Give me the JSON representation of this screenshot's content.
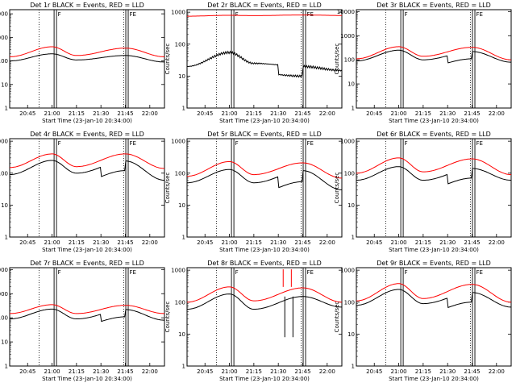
{
  "chart_data": {
    "type": "line",
    "x_range": [
      "20:34:00",
      "22:09:00"
    ],
    "x_ticks": [
      "20:45",
      "21:00",
      "21:15",
      "21:30",
      "21:45",
      "22:00"
    ],
    "y_scale": "log",
    "y_ticks": [
      "1",
      "10",
      "100",
      "1000",
      "10000"
    ],
    "ylabel": "Counts/sec",
    "xlabel": "Start Time (23-Jan-10 20:34:00)",
    "series_colors": {
      "Events": "#000000",
      "LLD": "#ff0000"
    },
    "markers": {
      "dotted_times": [
        "20:52",
        "21:44"
      ],
      "double_line_times": [
        "21:02",
        "21:46"
      ],
      "letters": [
        "F",
        "FE"
      ]
    },
    "panels": [
      {
        "title": "Det 1r  BLACK = Events, RED = LLD",
        "ylim": [
          1,
          15000
        ],
        "y_ticks_shown": [
          "1",
          "10",
          "100",
          "1000",
          "10000"
        ],
        "events_base": [
          100,
          200,
          110,
          170,
          90
        ],
        "lld_base": [
          150,
          400,
          170,
          350,
          150
        ],
        "steps": []
      },
      {
        "title": "Det 2r  BLACK = Events, RED = LLD",
        "ylim": [
          1,
          1200
        ],
        "y_ticks_shown": [
          "1",
          "10",
          "100",
          "1000"
        ],
        "events_base": [
          20,
          55,
          25,
          20,
          15
        ],
        "lld_base": [
          750,
          800,
          780,
          820,
          790
        ],
        "steps": [
          {
            "t": "21:30",
            "factor": 0.5
          }
        ]
      },
      {
        "title": "Det 3r  BLACK = Events, RED = LLD",
        "ylim": [
          1,
          12000
        ],
        "y_ticks_shown": [
          "1",
          "10",
          "100",
          "1000",
          "10000"
        ],
        "events_base": [
          90,
          250,
          100,
          220,
          80
        ],
        "lld_base": [
          110,
          350,
          140,
          330,
          100
        ],
        "steps": [
          {
            "t": "21:30",
            "factor": 0.5
          }
        ]
      },
      {
        "title": "Det 4r  BLACK = Events, RED = LLD",
        "ylim": [
          1,
          1200
        ],
        "y_ticks_shown": [
          "1",
          "10",
          "100",
          "1000"
        ],
        "events_base": [
          90,
          250,
          100,
          240,
          60
        ],
        "lld_base": [
          150,
          400,
          160,
          400,
          140
        ],
        "steps": [
          {
            "t": "21:30",
            "factor": 0.5
          }
        ]
      },
      {
        "title": "Det 5r  BLACK = Events, RED = LLD",
        "ylim": [
          1,
          1200
        ],
        "y_ticks_shown": [
          "1",
          "10",
          "100",
          "1000"
        ],
        "events_base": [
          50,
          130,
          50,
          120,
          30
        ],
        "lld_base": [
          80,
          230,
          90,
          210,
          70
        ],
        "steps": [
          {
            "t": "21:30",
            "factor": 0.45
          }
        ]
      },
      {
        "title": "Det 6r  BLACK = Events, RED = LLD",
        "ylim": [
          1,
          1200
        ],
        "y_ticks_shown": [
          "1",
          "10",
          "100",
          "1000"
        ],
        "events_base": [
          60,
          160,
          60,
          140,
          60
        ],
        "lld_base": [
          100,
          300,
          110,
          280,
          90
        ],
        "steps": [
          {
            "t": "21:30",
            "factor": 0.5
          }
        ]
      },
      {
        "title": "Det 7r  BLACK = Events, RED = LLD",
        "ylim": [
          1,
          12000
        ],
        "y_ticks_shown": [
          "1",
          "10",
          "100",
          "1000",
          "10000"
        ],
        "events_base": [
          90,
          230,
          90,
          220,
          80
        ],
        "lld_base": [
          150,
          350,
          150,
          330,
          150
        ],
        "steps": [
          {
            "t": "21:30",
            "factor": 0.5
          }
        ]
      },
      {
        "title": "Det 8r  BLACK = Events, RED = LLD",
        "ylim": [
          1,
          1200
        ],
        "y_ticks_shown": [
          "1",
          "10",
          "100",
          "1000"
        ],
        "events_base": [
          60,
          180,
          60,
          150,
          70
        ],
        "lld_base": [
          100,
          300,
          110,
          280,
          100
        ],
        "steps": [],
        "spikes": true
      },
      {
        "title": "Det 9r  BLACK = Events, RED = LLD",
        "ylim": [
          1,
          1200
        ],
        "y_ticks_shown": [
          "1",
          "10",
          "100",
          "1000"
        ],
        "events_base": [
          80,
          250,
          90,
          200,
          70
        ],
        "lld_base": [
          110,
          380,
          130,
          360,
          100
        ],
        "steps": [
          {
            "t": "21:30",
            "factor": 0.5
          }
        ]
      }
    ]
  }
}
